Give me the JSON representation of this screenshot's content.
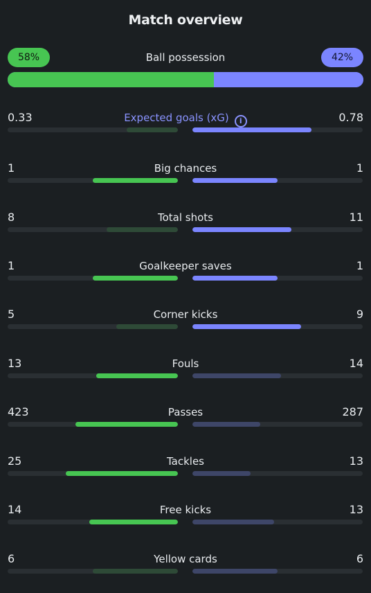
{
  "header": {
    "title": "Match overview"
  },
  "possession": {
    "label": "Ball possession",
    "home_text": "58%",
    "away_text": "42%",
    "home_percent": 58
  },
  "colors": {
    "home": "#47c552",
    "home_muted": "#2e4a37",
    "away": "#7b85ff",
    "away_muted": "#3e4668",
    "track": "#2a2f33",
    "background": "#1b1f22"
  },
  "stats": [
    {
      "label": "Expected goals (xG)",
      "home": "0.33",
      "away": "0.78",
      "home_share": 0.3,
      "away_share": 0.7,
      "highlight": "away",
      "info_icon": true
    },
    {
      "label": "Big chances",
      "home": "1",
      "away": "1",
      "home_share": 0.5,
      "away_share": 0.5,
      "highlight": "both"
    },
    {
      "label": "Total shots",
      "home": "8",
      "away": "11",
      "home_share": 0.42,
      "away_share": 0.58,
      "highlight": "away"
    },
    {
      "label": "Goalkeeper saves",
      "home": "1",
      "away": "1",
      "home_share": 0.5,
      "away_share": 0.5,
      "highlight": "both"
    },
    {
      "label": "Corner kicks",
      "home": "5",
      "away": "9",
      "home_share": 0.36,
      "away_share": 0.64,
      "highlight": "away"
    },
    {
      "label": "Fouls",
      "home": "13",
      "away": "14",
      "home_share": 0.48,
      "away_share": 0.52,
      "highlight": "home"
    },
    {
      "label": "Passes",
      "home": "423",
      "away": "287",
      "home_share": 0.6,
      "away_share": 0.4,
      "highlight": "home"
    },
    {
      "label": "Tackles",
      "home": "25",
      "away": "13",
      "home_share": 0.66,
      "away_share": 0.34,
      "highlight": "home"
    },
    {
      "label": "Free kicks",
      "home": "14",
      "away": "13",
      "home_share": 0.52,
      "away_share": 0.48,
      "highlight": "home"
    },
    {
      "label": "Yellow cards",
      "home": "6",
      "away": "6",
      "home_share": 0.5,
      "away_share": 0.5,
      "highlight": "none"
    }
  ]
}
